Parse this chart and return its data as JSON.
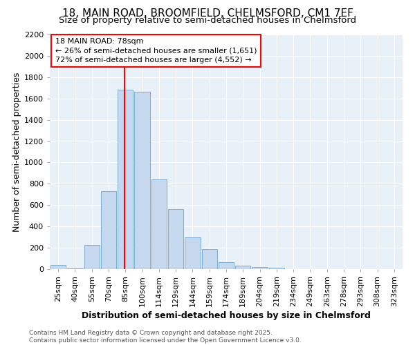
{
  "title": "18, MAIN ROAD, BROOMFIELD, CHELMSFORD, CM1 7EF",
  "subtitle": "Size of property relative to semi-detached houses in Chelmsford",
  "xlabel": "Distribution of semi-detached houses by size in Chelmsford",
  "ylabel": "Number of semi-detached properties",
  "categories": [
    "25sqm",
    "40sqm",
    "55sqm",
    "70sqm",
    "85sqm",
    "100sqm",
    "114sqm",
    "129sqm",
    "144sqm",
    "159sqm",
    "174sqm",
    "189sqm",
    "204sqm",
    "219sqm",
    "234sqm",
    "249sqm",
    "263sqm",
    "278sqm",
    "293sqm",
    "308sqm",
    "323sqm"
  ],
  "values": [
    40,
    5,
    225,
    730,
    1680,
    1660,
    840,
    560,
    300,
    185,
    65,
    35,
    20,
    10,
    0,
    0,
    0,
    0,
    0,
    0,
    0
  ],
  "bar_color": "#c5d8ed",
  "bar_edge_color": "#7bafd4",
  "red_line_x": 3.95,
  "annotation_label": "18 MAIN ROAD: 78sqm",
  "annotation_line1": "← 26% of semi-detached houses are smaller (1,651)",
  "annotation_line2": "72% of semi-detached houses are larger (4,552) →",
  "ylim": [
    0,
    2200
  ],
  "yticks": [
    0,
    200,
    400,
    600,
    800,
    1000,
    1200,
    1400,
    1600,
    1800,
    2000,
    2200
  ],
  "footer_line1": "Contains HM Land Registry data © Crown copyright and database right 2025.",
  "footer_line2": "Contains public sector information licensed under the Open Government Licence v3.0.",
  "bg_color": "#ffffff",
  "plot_bg_color": "#e8f0f8",
  "grid_color": "#ffffff",
  "title_fontsize": 11,
  "subtitle_fontsize": 9.5,
  "axis_label_fontsize": 9,
  "tick_fontsize": 8,
  "annotation_fontsize": 8,
  "footer_fontsize": 6.5
}
